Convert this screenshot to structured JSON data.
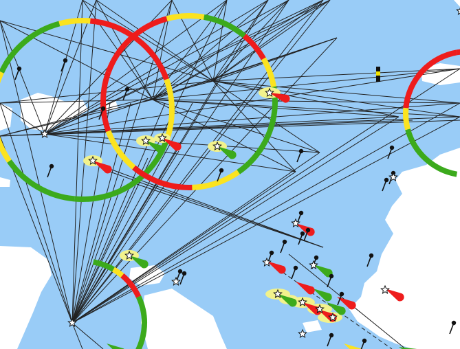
{
  "map": {
    "type": "nautical-chart",
    "colors": {
      "water": "#99ccf7",
      "land": "#ffffff",
      "line": "#222222",
      "sector_red": "#ee1c1c",
      "sector_green": "#3caa1c",
      "sector_yellow": "#fbe320",
      "light_glow": "#f2f28c"
    },
    "symbols": [
      "light-star-icon",
      "light-flare-icon",
      "buoy-icon",
      "beacon-icon"
    ],
    "labels": []
  }
}
